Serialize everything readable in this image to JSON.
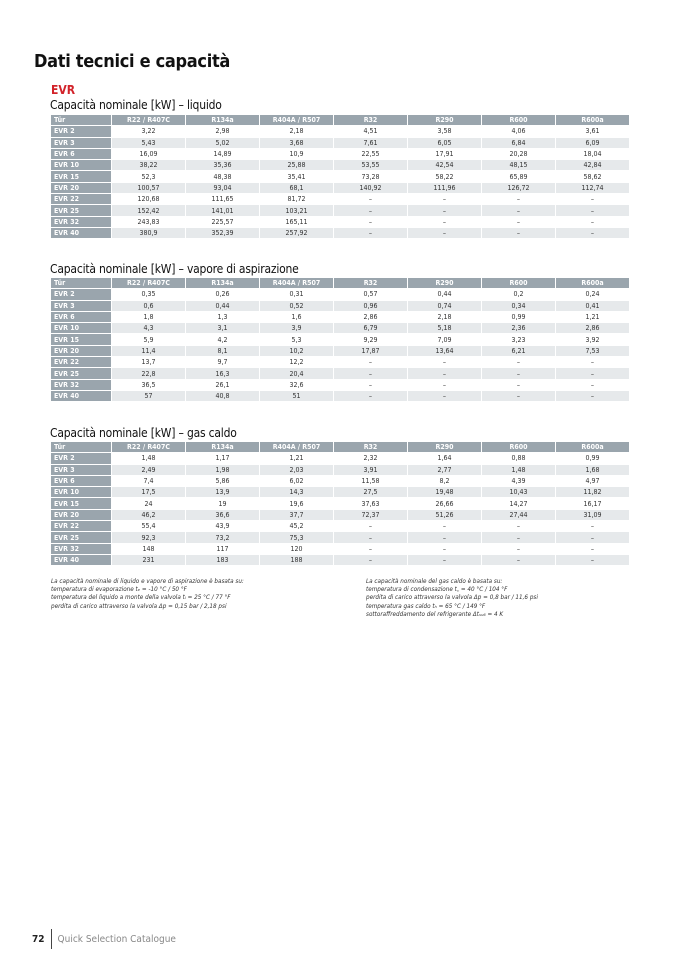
{
  "page_title": "Dati tecnici e capacità",
  "product": "EVR",
  "columns": [
    "Tür",
    "R22 / R407C",
    "R134a",
    "R404A / R507",
    "R32",
    "R290",
    "R600",
    "R600a"
  ],
  "tables": [
    {
      "heading": "Capacità nominale [kW] – liquido",
      "rows": [
        [
          "EVR 2",
          "3,22",
          "2,98",
          "2,18",
          "4,51",
          "3,58",
          "4,06",
          "3,61"
        ],
        [
          "EVR 3",
          "5,43",
          "5,02",
          "3,68",
          "7,61",
          "6,05",
          "6,84",
          "6,09"
        ],
        [
          "EVR 6",
          "16,09",
          "14,89",
          "10,9",
          "22,55",
          "17,91",
          "20,28",
          "18,04"
        ],
        [
          "EVR 10",
          "38,22",
          "35,36",
          "25,88",
          "53,55",
          "42,54",
          "48,15",
          "42,84"
        ],
        [
          "EVR 15",
          "52,3",
          "48,38",
          "35,41",
          "73,28",
          "58,22",
          "65,89",
          "58,62"
        ],
        [
          "EVR 20",
          "100,57",
          "93,04",
          "68,1",
          "140,92",
          "111,96",
          "126,72",
          "112,74"
        ],
        [
          "EVR 22",
          "120,68",
          "111,65",
          "81,72",
          "–",
          "–",
          "–",
          "–"
        ],
        [
          "EVR 25",
          "152,42",
          "141,01",
          "103,21",
          "–",
          "–",
          "–",
          "–"
        ],
        [
          "EVR 32",
          "243,83",
          "225,57",
          "165,11",
          "–",
          "–",
          "–",
          "–"
        ],
        [
          "EVR 40",
          "380,9",
          "352,39",
          "257,92",
          "–",
          "–",
          "–",
          "–"
        ]
      ]
    },
    {
      "heading": "Capacità nominale [kW] – vapore di aspirazione",
      "rows": [
        [
          "EVR 2",
          "0,35",
          "0,26",
          "0,31",
          "0,57",
          "0,44",
          "0,2",
          "0,24"
        ],
        [
          "EVR 3",
          "0,6",
          "0,44",
          "0,52",
          "0,96",
          "0,74",
          "0,34",
          "0,41"
        ],
        [
          "EVR 6",
          "1,8",
          "1,3",
          "1,6",
          "2,86",
          "2,18",
          "0,99",
          "1,21"
        ],
        [
          "EVR 10",
          "4,3",
          "3,1",
          "3,9",
          "6,79",
          "5,18",
          "2,36",
          "2,86"
        ],
        [
          "EVR 15",
          "5,9",
          "4,2",
          "5,3",
          "9,29",
          "7,09",
          "3,23",
          "3,92"
        ],
        [
          "EVR 20",
          "11,4",
          "8,1",
          "10,2",
          "17,87",
          "13,64",
          "6,21",
          "7,53"
        ],
        [
          "EVR 22",
          "13,7",
          "9,7",
          "12,2",
          "–",
          "–",
          "–",
          "–"
        ],
        [
          "EVR 25",
          "22,8",
          "16,3",
          "20,4",
          "–",
          "–",
          "–",
          "–"
        ],
        [
          "EVR 32",
          "36,5",
          "26,1",
          "32,6",
          "–",
          "–",
          "–",
          "–"
        ],
        [
          "EVR 40",
          "57",
          "40,8",
          "51",
          "–",
          "–",
          "–",
          "–"
        ]
      ]
    },
    {
      "heading": "Capacità nominale [kW] – gas caldo",
      "rows": [
        [
          "EVR 2",
          "1,48",
          "1,17",
          "1,21",
          "2,32",
          "1,64",
          "0,88",
          "0,99"
        ],
        [
          "EVR 3",
          "2,49",
          "1,98",
          "2,03",
          "3,91",
          "2,77",
          "1,48",
          "1,68"
        ],
        [
          "EVR 6",
          "7,4",
          "5,86",
          "6,02",
          "11,58",
          "8,2",
          "4,39",
          "4,97"
        ],
        [
          "EVR 10",
          "17,5",
          "13,9",
          "14,3",
          "27,5",
          "19,48",
          "10,43",
          "11,82"
        ],
        [
          "EVR 15",
          "24",
          "19",
          "19,6",
          "37,63",
          "26,66",
          "14,27",
          "16,17"
        ],
        [
          "EVR 20",
          "46,2",
          "36,6",
          "37,7",
          "72,37",
          "51,26",
          "27,44",
          "31,09"
        ],
        [
          "EVR 22",
          "55,4",
          "43,9",
          "45,2",
          "–",
          "–",
          "–",
          "–"
        ],
        [
          "EVR 25",
          "92,3",
          "73,2",
          "75,3",
          "–",
          "–",
          "–",
          "–"
        ],
        [
          "EVR 32",
          "148",
          "117",
          "120",
          "–",
          "–",
          "–",
          "–"
        ],
        [
          "EVR 40",
          "231",
          "183",
          "188",
          "–",
          "–",
          "–",
          "–"
        ]
      ]
    }
  ],
  "notes": {
    "left": [
      "La capacità nominale di liquido e vapore di aspirazione è basata su:",
      "temperatura di evaporazione tₑ = -10 °C / 50 °F",
      "temperatura del liquido a monte della valvola tₗ = 25 °C / 77 °F",
      "perdita di carico attraverso la valvola Δp = 0,15 bar / 2,18 psi"
    ],
    "right": [
      "La capacità nominale del gas caldo è basata su:",
      "temperatura di condensazione t꜀ = 40 °C / 104 °F",
      "perdita di carico attraverso la valvola Δp = 0,8 bar / 11,6 psi",
      "temperatura gas caldo tₕ = 65 °C / 149 °F",
      "sottoraffreddamento del refrigerante Δtₛᵤ₆ = 4 K"
    ]
  },
  "footer": {
    "page_number": "72",
    "catalogue": "Quick Selection Catalogue"
  }
}
